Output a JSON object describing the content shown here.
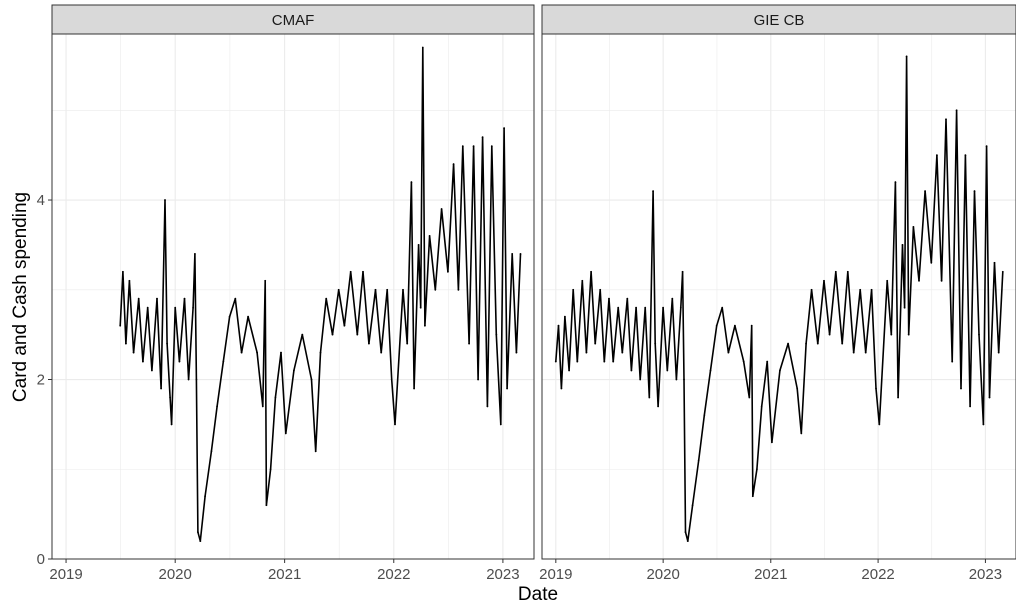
{
  "chart_data": {
    "type": "line",
    "ylabel": "Card and Cash spending",
    "xlabel": "Date",
    "ylim": [
      0,
      5.85
    ],
    "yticks": [
      0,
      2,
      4
    ],
    "ytick_labels": [
      "0",
      "2",
      "4"
    ],
    "xlim": [
      "2018-11-15",
      "2023-04-15"
    ],
    "xticks": [
      "2019-01-01",
      "2020-01-01",
      "2021-01-01",
      "2022-01-01",
      "2023-01-01"
    ],
    "xtick_labels": [
      "2019",
      "2020",
      "2021",
      "2022",
      "2023"
    ],
    "grid": true,
    "line_color": "#000000",
    "panel_border_color": "#333333",
    "strip_fill": "#d9d9d9",
    "grid_color": "#ebebeb",
    "panels": [
      {
        "title": "CMAF",
        "series": [
          {
            "values": [
              [
                "2019-07-01",
                2.6
              ],
              [
                "2019-07-10",
                3.2
              ],
              [
                "2019-07-20",
                2.4
              ],
              [
                "2019-08-01",
                3.1
              ],
              [
                "2019-08-15",
                2.3
              ],
              [
                "2019-09-01",
                2.9
              ],
              [
                "2019-09-15",
                2.2
              ],
              [
                "2019-10-01",
                2.8
              ],
              [
                "2019-10-15",
                2.1
              ],
              [
                "2019-11-01",
                2.9
              ],
              [
                "2019-11-15",
                1.9
              ],
              [
                "2019-11-28",
                4.0
              ],
              [
                "2019-12-05",
                2.4
              ],
              [
                "2019-12-15",
                1.8
              ],
              [
                "2019-12-20",
                1.5
              ],
              [
                "2020-01-01",
                2.8
              ],
              [
                "2020-01-15",
                2.2
              ],
              [
                "2020-02-01",
                2.9
              ],
              [
                "2020-02-15",
                2.0
              ],
              [
                "2020-03-01",
                2.8
              ],
              [
                "2020-03-07",
                3.4
              ],
              [
                "2020-03-12",
                2.0
              ],
              [
                "2020-03-17",
                0.3
              ],
              [
                "2020-03-25",
                0.2
              ],
              [
                "2020-04-10",
                0.7
              ],
              [
                "2020-05-01",
                1.2
              ],
              [
                "2020-05-20",
                1.7
              ],
              [
                "2020-06-10",
                2.2
              ],
              [
                "2020-07-01",
                2.7
              ],
              [
                "2020-07-20",
                2.9
              ],
              [
                "2020-08-10",
                2.3
              ],
              [
                "2020-09-01",
                2.7
              ],
              [
                "2020-10-01",
                2.3
              ],
              [
                "2020-10-20",
                1.7
              ],
              [
                "2020-10-28",
                3.1
              ],
              [
                "2020-11-01",
                0.6
              ],
              [
                "2020-11-15",
                1.0
              ],
              [
                "2020-12-01",
                1.8
              ],
              [
                "2020-12-20",
                2.3
              ],
              [
                "2021-01-05",
                1.4
              ],
              [
                "2021-02-01",
                2.1
              ],
              [
                "2021-03-01",
                2.5
              ],
              [
                "2021-04-01",
                2.0
              ],
              [
                "2021-04-15",
                1.2
              ],
              [
                "2021-05-01",
                2.3
              ],
              [
                "2021-05-20",
                2.9
              ],
              [
                "2021-06-10",
                2.5
              ],
              [
                "2021-07-01",
                3.0
              ],
              [
                "2021-07-20",
                2.6
              ],
              [
                "2021-08-10",
                3.2
              ],
              [
                "2021-09-01",
                2.5
              ],
              [
                "2021-09-20",
                3.2
              ],
              [
                "2021-10-10",
                2.4
              ],
              [
                "2021-11-01",
                3.0
              ],
              [
                "2021-11-20",
                2.3
              ],
              [
                "2021-12-10",
                3.0
              ],
              [
                "2021-12-25",
                2.0
              ],
              [
                "2022-01-05",
                1.5
              ],
              [
                "2022-02-01",
                3.0
              ],
              [
                "2022-02-15",
                2.4
              ],
              [
                "2022-03-01",
                4.2
              ],
              [
                "2022-03-10",
                1.9
              ],
              [
                "2022-03-25",
                3.5
              ],
              [
                "2022-04-01",
                2.8
              ],
              [
                "2022-04-08",
                5.7
              ],
              [
                "2022-04-15",
                2.6
              ],
              [
                "2022-05-01",
                3.6
              ],
              [
                "2022-05-20",
                3.0
              ],
              [
                "2022-06-10",
                3.9
              ],
              [
                "2022-07-01",
                3.2
              ],
              [
                "2022-07-20",
                4.4
              ],
              [
                "2022-08-05",
                3.0
              ],
              [
                "2022-08-20",
                4.6
              ],
              [
                "2022-09-10",
                2.4
              ],
              [
                "2022-09-25",
                4.6
              ],
              [
                "2022-10-10",
                2.0
              ],
              [
                "2022-10-25",
                4.7
              ],
              [
                "2022-11-10",
                1.7
              ],
              [
                "2022-11-25",
                4.6
              ],
              [
                "2022-12-10",
                2.5
              ],
              [
                "2022-12-25",
                1.5
              ],
              [
                "2023-01-05",
                4.8
              ],
              [
                "2023-01-15",
                1.9
              ],
              [
                "2023-02-01",
                3.4
              ],
              [
                "2023-02-15",
                2.3
              ],
              [
                "2023-03-01",
                3.4
              ]
            ]
          }
        ]
      },
      {
        "title": "GIE CB",
        "series": [
          {
            "values": [
              [
                "2019-01-01",
                2.2
              ],
              [
                "2019-01-10",
                2.6
              ],
              [
                "2019-01-20",
                1.9
              ],
              [
                "2019-02-01",
                2.7
              ],
              [
                "2019-02-15",
                2.1
              ],
              [
                "2019-03-01",
                3.0
              ],
              [
                "2019-03-15",
                2.2
              ],
              [
                "2019-04-01",
                3.1
              ],
              [
                "2019-04-15",
                2.3
              ],
              [
                "2019-05-01",
                3.2
              ],
              [
                "2019-05-15",
                2.4
              ],
              [
                "2019-06-01",
                3.0
              ],
              [
                "2019-06-15",
                2.2
              ],
              [
                "2019-07-01",
                2.9
              ],
              [
                "2019-07-15",
                2.2
              ],
              [
                "2019-08-01",
                2.8
              ],
              [
                "2019-08-15",
                2.3
              ],
              [
                "2019-09-01",
                2.9
              ],
              [
                "2019-09-15",
                2.1
              ],
              [
                "2019-10-01",
                2.8
              ],
              [
                "2019-10-15",
                2.0
              ],
              [
                "2019-11-01",
                2.8
              ],
              [
                "2019-11-15",
                1.8
              ],
              [
                "2019-11-28",
                4.1
              ],
              [
                "2019-12-05",
                2.4
              ],
              [
                "2019-12-15",
                1.7
              ],
              [
                "2020-01-01",
                2.8
              ],
              [
                "2020-01-15",
                2.1
              ],
              [
                "2020-02-01",
                2.9
              ],
              [
                "2020-02-15",
                2.0
              ],
              [
                "2020-03-01",
                2.8
              ],
              [
                "2020-03-07",
                3.2
              ],
              [
                "2020-03-12",
                2.0
              ],
              [
                "2020-03-17",
                0.3
              ],
              [
                "2020-03-25",
                0.2
              ],
              [
                "2020-04-10",
                0.6
              ],
              [
                "2020-05-01",
                1.1
              ],
              [
                "2020-05-20",
                1.6
              ],
              [
                "2020-06-10",
                2.1
              ],
              [
                "2020-07-01",
                2.6
              ],
              [
                "2020-07-20",
                2.8
              ],
              [
                "2020-08-10",
                2.3
              ],
              [
                "2020-09-01",
                2.6
              ],
              [
                "2020-10-01",
                2.2
              ],
              [
                "2020-10-20",
                1.8
              ],
              [
                "2020-10-28",
                2.6
              ],
              [
                "2020-11-01",
                0.7
              ],
              [
                "2020-11-15",
                1.0
              ],
              [
                "2020-12-01",
                1.7
              ],
              [
                "2020-12-20",
                2.2
              ],
              [
                "2021-01-05",
                1.3
              ],
              [
                "2021-02-01",
                2.1
              ],
              [
                "2021-03-01",
                2.4
              ],
              [
                "2021-04-01",
                1.9
              ],
              [
                "2021-04-15",
                1.4
              ],
              [
                "2021-05-01",
                2.4
              ],
              [
                "2021-05-20",
                3.0
              ],
              [
                "2021-06-10",
                2.4
              ],
              [
                "2021-07-01",
                3.1
              ],
              [
                "2021-07-20",
                2.5
              ],
              [
                "2021-08-10",
                3.2
              ],
              [
                "2021-09-01",
                2.4
              ],
              [
                "2021-09-20",
                3.2
              ],
              [
                "2021-10-10",
                2.3
              ],
              [
                "2021-11-01",
                3.0
              ],
              [
                "2021-11-20",
                2.3
              ],
              [
                "2021-12-10",
                3.0
              ],
              [
                "2021-12-25",
                1.9
              ],
              [
                "2022-01-05",
                1.5
              ],
              [
                "2022-02-01",
                3.1
              ],
              [
                "2022-02-15",
                2.5
              ],
              [
                "2022-03-01",
                4.2
              ],
              [
                "2022-03-10",
                1.8
              ],
              [
                "2022-03-25",
                3.5
              ],
              [
                "2022-04-01",
                2.8
              ],
              [
                "2022-04-08",
                5.6
              ],
              [
                "2022-04-15",
                2.5
              ],
              [
                "2022-05-01",
                3.7
              ],
              [
                "2022-05-20",
                3.1
              ],
              [
                "2022-06-10",
                4.1
              ],
              [
                "2022-07-01",
                3.3
              ],
              [
                "2022-07-20",
                4.5
              ],
              [
                "2022-08-05",
                3.1
              ],
              [
                "2022-08-20",
                4.9
              ],
              [
                "2022-09-10",
                2.2
              ],
              [
                "2022-09-25",
                5.0
              ],
              [
                "2022-10-10",
                1.9
              ],
              [
                "2022-10-25",
                4.5
              ],
              [
                "2022-11-10",
                1.7
              ],
              [
                "2022-11-25",
                4.1
              ],
              [
                "2022-12-10",
                2.5
              ],
              [
                "2022-12-25",
                1.5
              ],
              [
                "2023-01-05",
                4.6
              ],
              [
                "2023-01-15",
                1.8
              ],
              [
                "2023-02-01",
                3.3
              ],
              [
                "2023-02-15",
                2.3
              ],
              [
                "2023-03-01",
                3.2
              ]
            ]
          }
        ]
      }
    ]
  }
}
